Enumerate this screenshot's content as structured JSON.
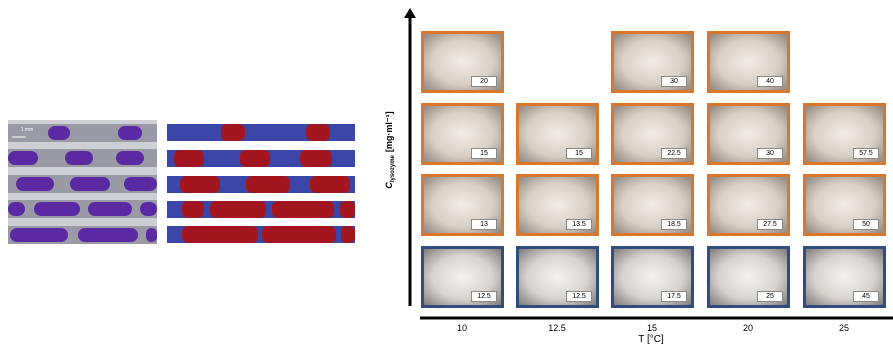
{
  "figure": {
    "scale_label": "1 mm",
    "y_axis": {
      "symbol": "C",
      "subscript": "lysozyme",
      "unit": "[mg·ml⁻¹]"
    },
    "x_axis": {
      "title": "T [°C]",
      "labels": [
        "10",
        "12.5",
        "15",
        "20",
        "25"
      ]
    },
    "grid": {
      "rows": [
        [
          "20",
          null,
          "30",
          "40",
          null
        ],
        [
          "15",
          "15",
          "22.5",
          "30",
          "57.5"
        ],
        [
          "13",
          "13.5",
          "18.5",
          "27.5",
          "50"
        ],
        [
          "12.5",
          "12.5",
          "17.5",
          "25",
          "45"
        ]
      ]
    }
  }
}
